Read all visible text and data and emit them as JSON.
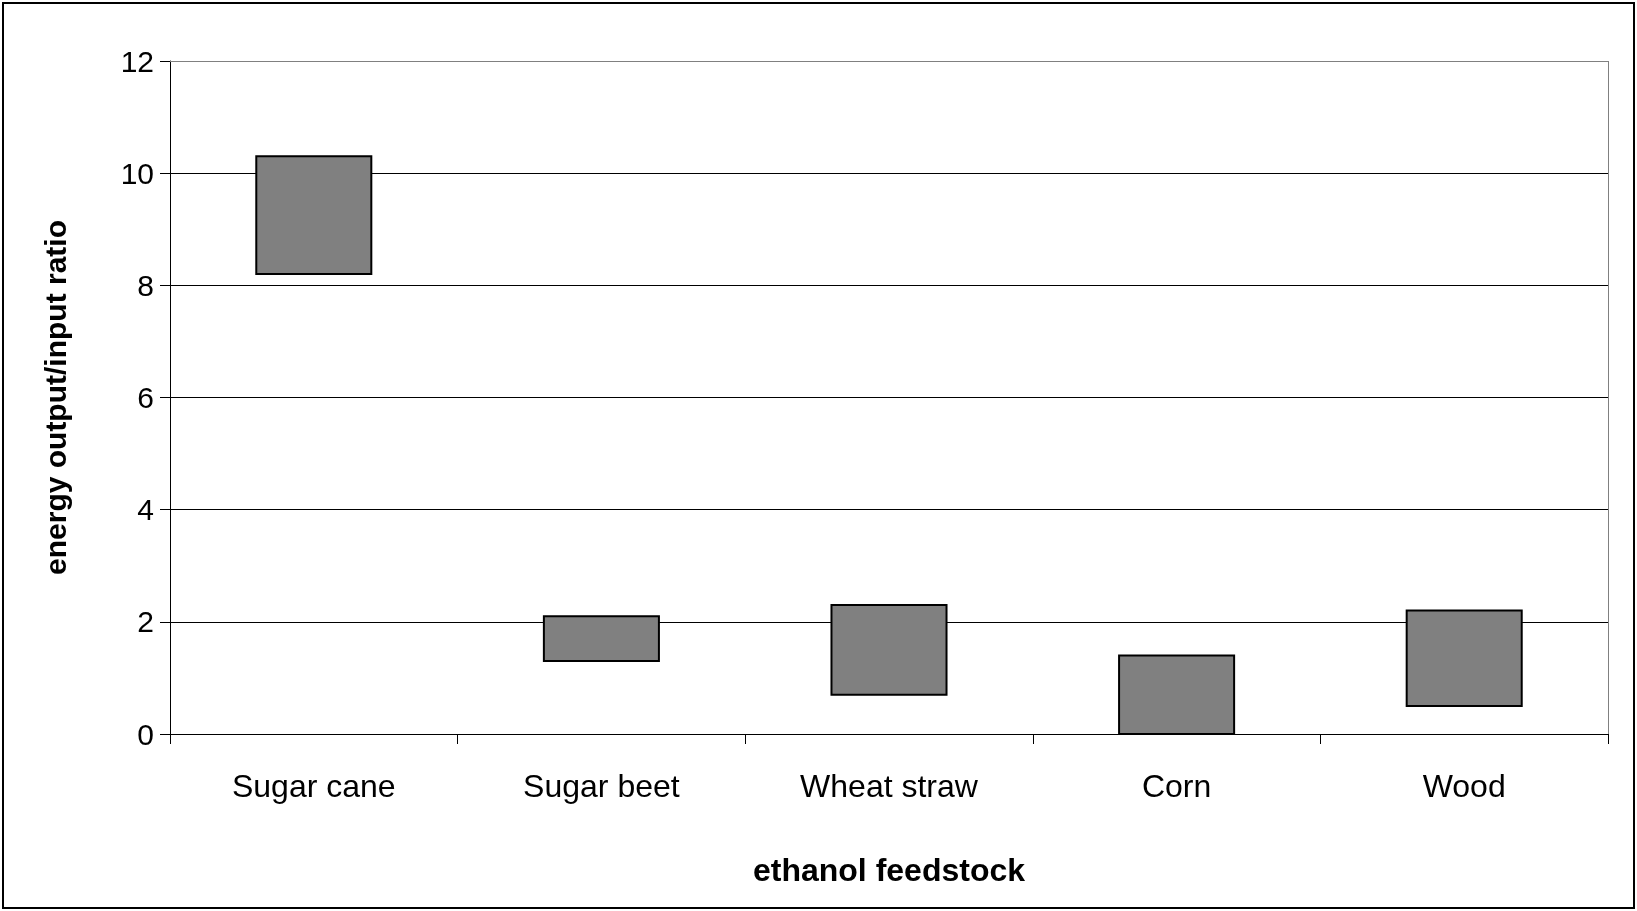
{
  "chart_data": {
    "type": "bar",
    "xlabel": "ethanol feedstock",
    "ylabel": "energy output/input ratio",
    "categories": [
      "Sugar cane",
      "Sugar beet",
      "Wheat straw",
      "Corn",
      "Wood"
    ],
    "base": [
      8.2,
      1.3,
      0.7,
      0,
      0.5
    ],
    "values": [
      2.1,
      0.8,
      1.6,
      1.4,
      1.7
    ],
    "color": "#808080",
    "ylim": [
      0,
      12
    ],
    "yticks": [
      0,
      2,
      4,
      6,
      8,
      10,
      12
    ],
    "grid": "y"
  }
}
